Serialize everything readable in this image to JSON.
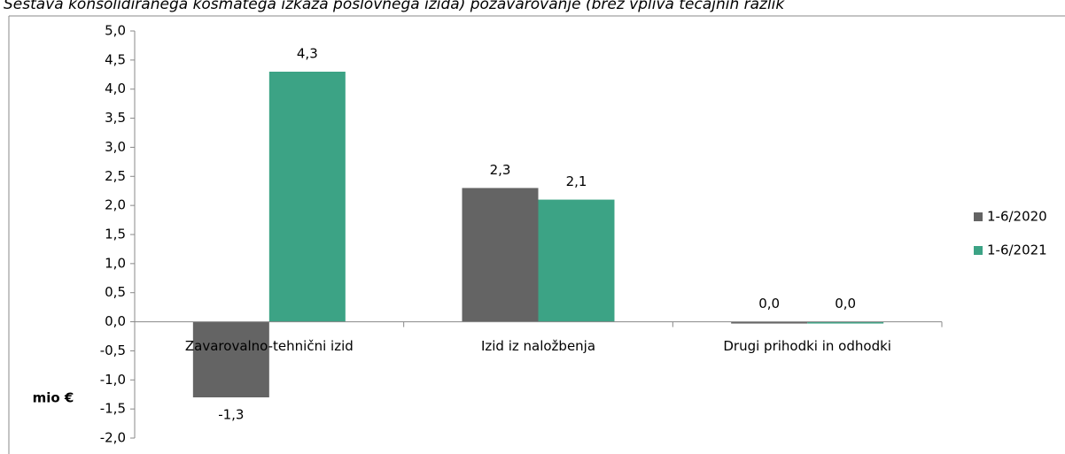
{
  "chart_data": {
    "type": "bar",
    "title": "Sestava konsolidiranega kosmatega izkaza poslovnega izida) pozavarovanje (brez vpliva tečajnih razlik",
    "y_axis_label": "mio €",
    "categories": [
      "Zavarovalno-tehnični izid",
      "Izid iz naložbenja",
      "Drugi prihodki in odhodki"
    ],
    "series": [
      {
        "name": "1-6/2020",
        "color": "#646464",
        "values": [
          -1.3,
          2.3,
          0.0
        ],
        "value_labels": [
          "-1,3",
          "2,3",
          "0,0"
        ]
      },
      {
        "name": "1-6/2021",
        "color": "#3ca385",
        "values": [
          4.3,
          2.1,
          0.0
        ],
        "value_labels": [
          "4,3",
          "2,1",
          "0,0"
        ]
      }
    ],
    "ylim": [
      -2,
      5
    ],
    "yticks": [
      {
        "value": -2,
        "label": "-2,0"
      },
      {
        "value": -1.5,
        "label": "-1,5"
      },
      {
        "value": -1,
        "label": "-1,0"
      },
      {
        "value": -0.5,
        "label": "-0,5"
      },
      {
        "value": 0,
        "label": "0,0"
      },
      {
        "value": 0.5,
        "label": "0,5"
      },
      {
        "value": 1,
        "label": "1,0"
      },
      {
        "value": 1.5,
        "label": "1,5"
      },
      {
        "value": 2,
        "label": "2,0"
      },
      {
        "value": 2.5,
        "label": "2,5"
      },
      {
        "value": 3,
        "label": "3,0"
      },
      {
        "value": 3.5,
        "label": "3,5"
      },
      {
        "value": 4,
        "label": "4,0"
      },
      {
        "value": 4.5,
        "label": "4,5"
      },
      {
        "value": 5,
        "label": "5,0"
      }
    ],
    "grid": false,
    "legend": "right"
  }
}
